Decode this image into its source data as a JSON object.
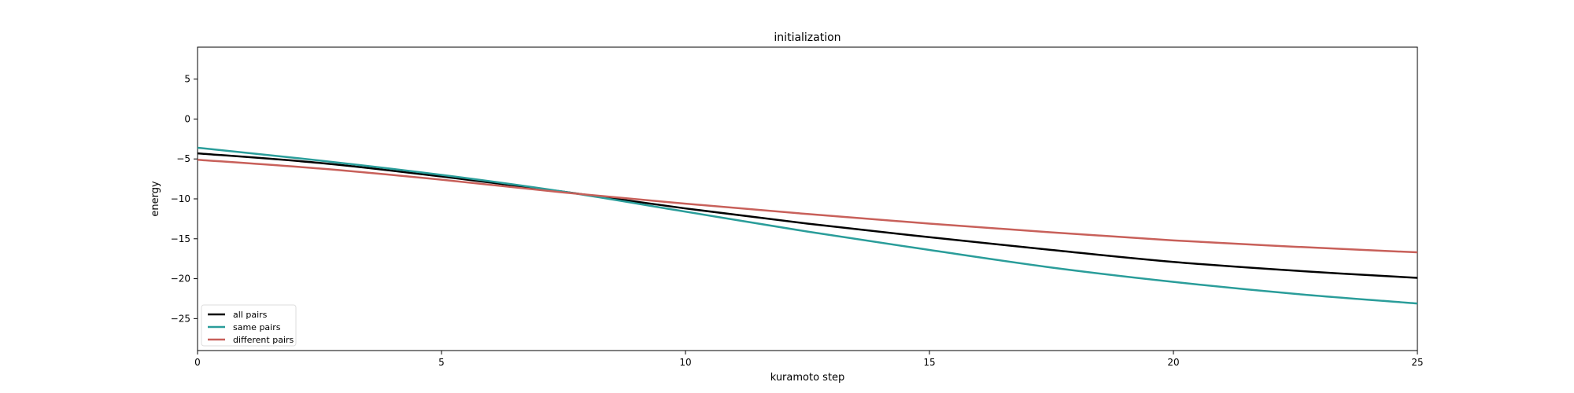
{
  "chart_data": {
    "type": "line",
    "title": "initialization",
    "xlabel": "kuramoto step",
    "ylabel": "energy",
    "xlim": [
      0,
      25
    ],
    "ylim": [
      -29,
      9
    ],
    "xticks": [
      0,
      5,
      10,
      15,
      20,
      25
    ],
    "xtick_labels": [
      "0",
      "5",
      "10",
      "15",
      "20",
      "25"
    ],
    "yticks": [
      5,
      0,
      -5,
      -10,
      -15,
      -20,
      -25
    ],
    "ytick_labels": [
      "5",
      "0",
      "−5",
      "−10",
      "−15",
      "−20",
      "−25"
    ],
    "grid": false,
    "legend_position": "lower-left",
    "x": [
      0,
      2.5,
      5,
      7.5,
      10,
      12.5,
      15,
      17.5,
      20,
      22.5,
      25
    ],
    "series": [
      {
        "name": "all pairs",
        "color": "#000000",
        "values": [
          -4.3,
          -5.5,
          -7.2,
          -9.1,
          -11.2,
          -13.1,
          -14.8,
          -16.4,
          -17.9,
          -19.0,
          -19.9
        ]
      },
      {
        "name": "same pairs",
        "color": "#2a9d9a",
        "values": [
          -3.6,
          -5.2,
          -7.0,
          -9.1,
          -11.6,
          -14.1,
          -16.4,
          -18.6,
          -20.4,
          -21.9,
          -23.1
        ]
      },
      {
        "name": "different pairs",
        "color": "#c8605a",
        "values": [
          -5.1,
          -6.2,
          -7.6,
          -9.2,
          -10.6,
          -11.9,
          -13.1,
          -14.2,
          -15.2,
          -16.0,
          -16.7
        ]
      }
    ]
  }
}
